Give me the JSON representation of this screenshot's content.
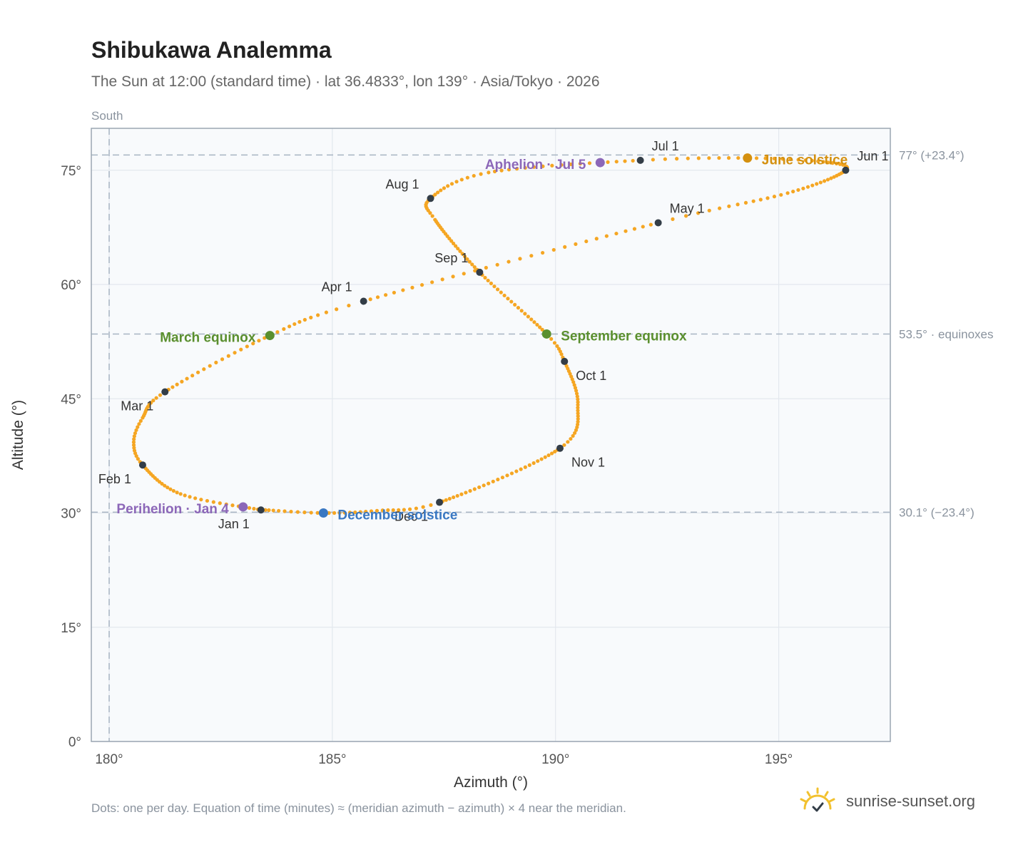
{
  "title": "Shibukawa Analemma",
  "subtitle": "The Sun at 12:00 (standard time) · lat 36.4833°, lon 139° · Asia/Tokyo · 2026",
  "footnote": "Dots: one per day. Equation of time (minutes) ≈ (meridian azimuth − azimuth) × 4 near the meridian.",
  "brand": "sunrise-sunset.org",
  "colors": {
    "curve": "#f5a623",
    "month_marker": "#333d47",
    "equinox": "#5a8f2e",
    "june_solstice": "#d4900f",
    "december_solstice": "#3a78c2",
    "apsis": "#8c67b8",
    "reference_line": "#a7b4c2",
    "plot_background": "#f8fafc",
    "frame": "#9aa6b2",
    "brand_icon": "#f2c12e"
  },
  "chart_data": {
    "type": "scatter",
    "xlabel": "Azimuth (°)",
    "ylabel": "Altitude (°)",
    "xlim": [
      179.6,
      197.5
    ],
    "ylim": [
      0,
      80.5
    ],
    "xticks": [
      180,
      185,
      190,
      195
    ],
    "xtick_labels": [
      "180°",
      "185°",
      "190°",
      "195°"
    ],
    "yticks": [
      0,
      15,
      30,
      45,
      60,
      75
    ],
    "ytick_labels": [
      "0°",
      "15°",
      "30°",
      "45°",
      "60°",
      "75°"
    ],
    "grid": true,
    "meridian": {
      "x": 180,
      "label": "South"
    },
    "reference_lines": [
      {
        "y": 77.0,
        "label": "77° (+23.4°)"
      },
      {
        "y": 53.5,
        "label": "53.5° · equinoxes"
      },
      {
        "y": 30.1,
        "label": "30.1° (−23.4°)"
      }
    ],
    "curve_anchors": [
      {
        "day": 1,
        "az": 183.4,
        "alt": 30.4
      },
      {
        "day": 16,
        "az": 181.6,
        "alt": 32.5
      },
      {
        "day": 32,
        "az": 180.75,
        "alt": 36.3
      },
      {
        "day": 40,
        "az": 180.55,
        "alt": 39.3
      },
      {
        "day": 48,
        "az": 180.75,
        "alt": 42.5
      },
      {
        "day": 60,
        "az": 181.25,
        "alt": 45.9
      },
      {
        "day": 79,
        "az": 183.6,
        "alt": 53.3
      },
      {
        "day": 91,
        "az": 185.7,
        "alt": 57.8
      },
      {
        "day": 121,
        "az": 192.3,
        "alt": 68.1
      },
      {
        "day": 135,
        "az": 195.2,
        "alt": 72.0
      },
      {
        "day": 152,
        "az": 196.5,
        "alt": 75.0
      },
      {
        "day": 162,
        "az": 196.0,
        "alt": 76.1
      },
      {
        "day": 172,
        "az": 194.3,
        "alt": 76.6
      },
      {
        "day": 182,
        "az": 191.9,
        "alt": 76.3
      },
      {
        "day": 200,
        "az": 188.5,
        "alt": 74.7
      },
      {
        "day": 213,
        "az": 187.2,
        "alt": 71.3
      },
      {
        "day": 222,
        "az": 187.3,
        "alt": 68.5
      },
      {
        "day": 244,
        "az": 188.3,
        "alt": 61.6
      },
      {
        "day": 266,
        "az": 189.8,
        "alt": 53.5
      },
      {
        "day": 274,
        "az": 190.2,
        "alt": 49.9
      },
      {
        "day": 290,
        "az": 190.5,
        "alt": 44.2
      },
      {
        "day": 305,
        "az": 190.1,
        "alt": 38.5
      },
      {
        "day": 335,
        "az": 187.4,
        "alt": 31.4
      },
      {
        "day": 345,
        "az": 186.0,
        "alt": 30.3
      },
      {
        "day": 355,
        "az": 184.8,
        "alt": 30.0
      },
      {
        "day": 365,
        "az": 183.5,
        "alt": 30.4
      }
    ],
    "month_markers": [
      {
        "label": "Jan 1",
        "az": 183.4,
        "alt": 30.4,
        "anchor": "end",
        "pos": "below"
      },
      {
        "label": "Feb 1",
        "az": 180.75,
        "alt": 36.3,
        "anchor": "end",
        "pos": "below"
      },
      {
        "label": "Mar 1",
        "az": 181.25,
        "alt": 45.9,
        "anchor": "end",
        "pos": "below"
      },
      {
        "label": "Apr 1",
        "az": 185.7,
        "alt": 57.8,
        "anchor": "end",
        "pos": "above"
      },
      {
        "label": "May 1",
        "az": 192.3,
        "alt": 68.1,
        "anchor": "start",
        "pos": "above"
      },
      {
        "label": "Jun 1",
        "az": 196.5,
        "alt": 75.0,
        "anchor": "start",
        "pos": "above"
      },
      {
        "label": "Jul 1",
        "az": 191.9,
        "alt": 76.3,
        "anchor": "start",
        "pos": "above"
      },
      {
        "label": "Aug 1",
        "az": 187.2,
        "alt": 71.3,
        "anchor": "end",
        "pos": "above"
      },
      {
        "label": "Sep 1",
        "az": 188.3,
        "alt": 61.6,
        "anchor": "end",
        "pos": "above"
      },
      {
        "label": "Oct 1",
        "az": 190.2,
        "alt": 49.9,
        "anchor": "start",
        "pos": "below"
      },
      {
        "label": "Nov 1",
        "az": 190.1,
        "alt": 38.5,
        "anchor": "start",
        "pos": "below"
      },
      {
        "label": "Dec 1",
        "az": 187.4,
        "alt": 31.4,
        "anchor": "end",
        "pos": "below"
      }
    ],
    "events": [
      {
        "label": "March equinox",
        "az": 183.6,
        "alt": 53.3,
        "color_key": "equinox",
        "anchor": "end"
      },
      {
        "label": "September equinox",
        "az": 189.8,
        "alt": 53.5,
        "color_key": "equinox",
        "anchor": "start"
      },
      {
        "label": "June solstice",
        "az": 194.3,
        "alt": 76.6,
        "color_key": "june_solstice",
        "anchor": "start"
      },
      {
        "label": "December solstice",
        "az": 184.8,
        "alt": 30.0,
        "color_key": "december_solstice",
        "anchor": "start"
      },
      {
        "label": "Perihelion · Jan 4",
        "az": 183.0,
        "alt": 30.8,
        "color_key": "apsis",
        "anchor": "end"
      },
      {
        "label": "Aphelion · Jul 5",
        "az": 191.0,
        "alt": 76.0,
        "color_key": "apsis",
        "anchor": "end"
      }
    ]
  }
}
